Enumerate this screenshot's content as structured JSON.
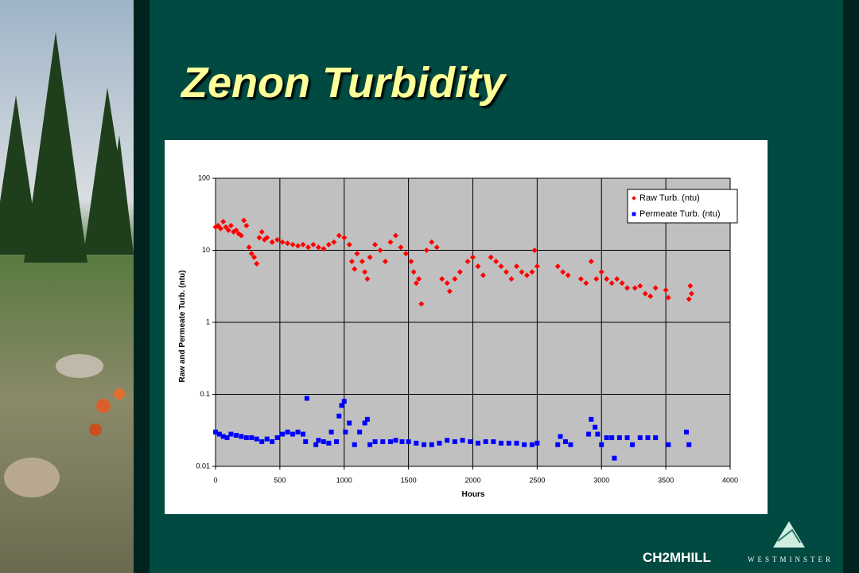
{
  "chart_data": {
    "type": "scatter",
    "title": "Zenon Turbidity",
    "x_label": "Hours",
    "y_label": "Raw and Permeate Turb. (ntu)",
    "xlim": [
      0,
      4000
    ],
    "xticks": [
      0,
      500,
      1000,
      1500,
      2000,
      2500,
      3000,
      3500,
      4000
    ],
    "ylim": [
      0.01,
      100
    ],
    "yticks": [
      0.01,
      0.1,
      1,
      10,
      100
    ],
    "log_y": true,
    "grid": true,
    "legend": "upper right",
    "series": [
      {
        "name": "Raw Turb. (ntu)",
        "color": "#ff0000",
        "marker": "diamond",
        "x": [
          0,
          20,
          40,
          60,
          80,
          100,
          120,
          140,
          160,
          180,
          200,
          220,
          240,
          260,
          280,
          300,
          320,
          340,
          360,
          380,
          400,
          440,
          480,
          520,
          560,
          600,
          640,
          680,
          720,
          760,
          800,
          840,
          880,
          920,
          960,
          1000,
          1040,
          1060,
          1080,
          1100,
          1140,
          1160,
          1180,
          1200,
          1240,
          1280,
          1320,
          1360,
          1400,
          1440,
          1480,
          1520,
          1540,
          1560,
          1580,
          1600,
          1640,
          1680,
          1720,
          1760,
          1800,
          1820,
          1860,
          1900,
          1960,
          2000,
          2040,
          2080,
          2140,
          2180,
          2220,
          2260,
          2300,
          2340,
          2380,
          2420,
          2460,
          2480,
          2500,
          2660,
          2700,
          2740,
          2840,
          2880,
          2920,
          2960,
          3000,
          3040,
          3080,
          3120,
          3160,
          3200,
          3260,
          3300,
          3340,
          3380,
          3420,
          3500,
          3520,
          3680,
          3690,
          3700
        ],
        "values": [
          21,
          22,
          20,
          25,
          21,
          19,
          22,
          18,
          19,
          17,
          16,
          26,
          22,
          11,
          9,
          8,
          6.5,
          15,
          18,
          14,
          15,
          13,
          14,
          13,
          12.5,
          12,
          11.5,
          12,
          11,
          12,
          11,
          10.5,
          12,
          13,
          16,
          15,
          12,
          7,
          5.5,
          9,
          7,
          5,
          4,
          8,
          12,
          10,
          7,
          13,
          16,
          11,
          9,
          7,
          5,
          3.5,
          4,
          1.8,
          10,
          13,
          11,
          4,
          3.5,
          2.7,
          4,
          5,
          7,
          8,
          6,
          4.5,
          8,
          7,
          6,
          5,
          4,
          6,
          5,
          4.5,
          5,
          10,
          6,
          6,
          5,
          4.5,
          4,
          3.5,
          7,
          4,
          5,
          4,
          3.5,
          4,
          3.5,
          3,
          3,
          3.2,
          2.5,
          2.3,
          3,
          2.8,
          2.2,
          2.1,
          3.2,
          2.5
        ]
      },
      {
        "name": "Permeate Turb. (ntu)",
        "color": "#0000ff",
        "marker": "square",
        "x": [
          0,
          30,
          60,
          90,
          120,
          160,
          200,
          240,
          280,
          320,
          360,
          400,
          440,
          480,
          520,
          560,
          600,
          640,
          680,
          700,
          710,
          780,
          800,
          840,
          880,
          900,
          940,
          960,
          980,
          1000,
          1010,
          1040,
          1080,
          1120,
          1160,
          1180,
          1200,
          1240,
          1300,
          1360,
          1400,
          1450,
          1500,
          1560,
          1620,
          1680,
          1740,
          1800,
          1860,
          1920,
          1980,
          2040,
          2100,
          2160,
          2220,
          2280,
          2340,
          2400,
          2460,
          2500,
          2660,
          2680,
          2720,
          2760,
          2900,
          2920,
          2950,
          2970,
          3000,
          3040,
          3080,
          3100,
          3140,
          3200,
          3240,
          3300,
          3360,
          3420,
          3520,
          3660,
          3680
        ],
        "values": [
          0.03,
          0.028,
          0.026,
          0.025,
          0.028,
          0.027,
          0.026,
          0.025,
          0.025,
          0.024,
          0.022,
          0.024,
          0.022,
          0.025,
          0.028,
          0.03,
          0.028,
          0.03,
          0.028,
          0.022,
          0.088,
          0.02,
          0.023,
          0.022,
          0.021,
          0.03,
          0.022,
          0.05,
          0.07,
          0.08,
          0.03,
          0.04,
          0.02,
          0.03,
          0.04,
          0.045,
          0.02,
          0.022,
          0.022,
          0.022,
          0.023,
          0.022,
          0.022,
          0.021,
          0.02,
          0.02,
          0.021,
          0.023,
          0.022,
          0.023,
          0.022,
          0.021,
          0.022,
          0.022,
          0.021,
          0.021,
          0.021,
          0.02,
          0.02,
          0.021,
          0.02,
          0.026,
          0.022,
          0.02,
          0.028,
          0.045,
          0.035,
          0.028,
          0.02,
          0.025,
          0.025,
          0.013,
          0.025,
          0.025,
          0.02,
          0.025,
          0.025,
          0.025,
          0.02,
          0.03,
          0.02
        ]
      }
    ]
  },
  "footer": {
    "logo": "CH2MHILL",
    "brand": "WESTMINSTER"
  }
}
